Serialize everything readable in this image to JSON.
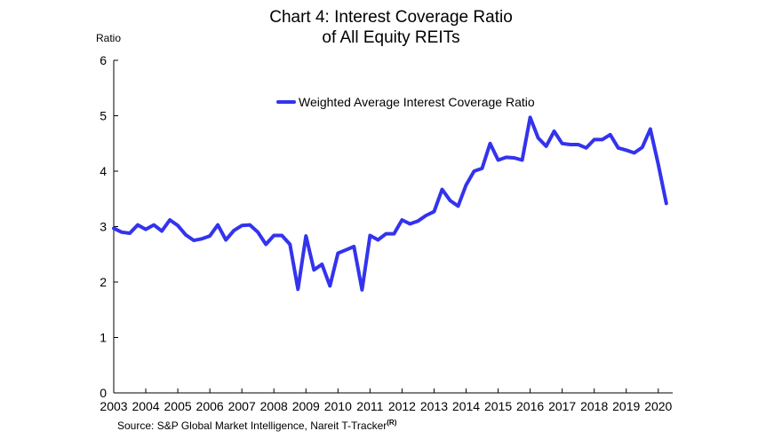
{
  "chart_data": {
    "type": "line",
    "title_line1": "Chart 4: Interest Coverage Ratio",
    "title_line2": "of All Equity REITs",
    "ylabel": "Ratio",
    "ylim": [
      0,
      6
    ],
    "yticks": [
      "0",
      "1",
      "2",
      "3",
      "4",
      "5",
      "6"
    ],
    "xticks": [
      "2003",
      "2004",
      "2005",
      "2006",
      "2007",
      "2008",
      "2009",
      "2010",
      "2011",
      "2012",
      "2013",
      "2014",
      "2015",
      "2016",
      "2017",
      "2018",
      "2019",
      "2020"
    ],
    "legend_position": "top-center",
    "grid": false,
    "series": [
      {
        "name": "Weighted Average Interest Coverage Ratio",
        "color": "#3333ee",
        "x": [
          2003.0,
          2003.25,
          2003.5,
          2003.75,
          2004.0,
          2004.25,
          2004.5,
          2004.75,
          2005.0,
          2005.25,
          2005.5,
          2005.75,
          2006.0,
          2006.25,
          2006.5,
          2006.75,
          2007.0,
          2007.25,
          2007.5,
          2007.75,
          2008.0,
          2008.25,
          2008.5,
          2008.75,
          2009.0,
          2009.25,
          2009.5,
          2009.75,
          2010.0,
          2010.25,
          2010.5,
          2010.75,
          2011.0,
          2011.25,
          2011.5,
          2011.75,
          2012.0,
          2012.25,
          2012.5,
          2012.75,
          2013.0,
          2013.25,
          2013.5,
          2013.75,
          2014.0,
          2014.25,
          2014.5,
          2014.75,
          2015.0,
          2015.25,
          2015.5,
          2015.75,
          2016.0,
          2016.25,
          2016.5,
          2016.75,
          2017.0,
          2017.25,
          2017.5,
          2017.75,
          2018.0,
          2018.25,
          2018.5,
          2018.75,
          2019.0,
          2019.25,
          2019.5,
          2019.75,
          2020.0,
          2020.25
        ],
        "values": [
          2.97,
          2.9,
          2.88,
          3.03,
          2.95,
          3.03,
          2.92,
          3.12,
          3.02,
          2.85,
          2.75,
          2.78,
          2.83,
          3.03,
          2.76,
          2.93,
          3.02,
          3.03,
          2.9,
          2.68,
          2.84,
          2.84,
          2.68,
          1.87,
          2.83,
          2.22,
          2.32,
          1.93,
          2.52,
          2.58,
          2.64,
          1.86,
          2.84,
          2.76,
          2.87,
          2.87,
          3.12,
          3.05,
          3.1,
          3.2,
          3.27,
          3.67,
          3.47,
          3.37,
          3.75,
          4.0,
          4.05,
          4.5,
          4.2,
          4.25,
          4.24,
          4.2,
          4.97,
          4.6,
          4.45,
          4.72,
          4.5,
          4.48,
          4.48,
          4.42,
          4.57,
          4.57,
          4.66,
          4.42,
          4.38,
          4.33,
          4.43,
          4.76,
          4.12,
          3.42
        ]
      }
    ]
  },
  "source_text": "Source: S&P Global Market Intelligence, Nareit T-Tracker",
  "source_superscript": "(R)"
}
